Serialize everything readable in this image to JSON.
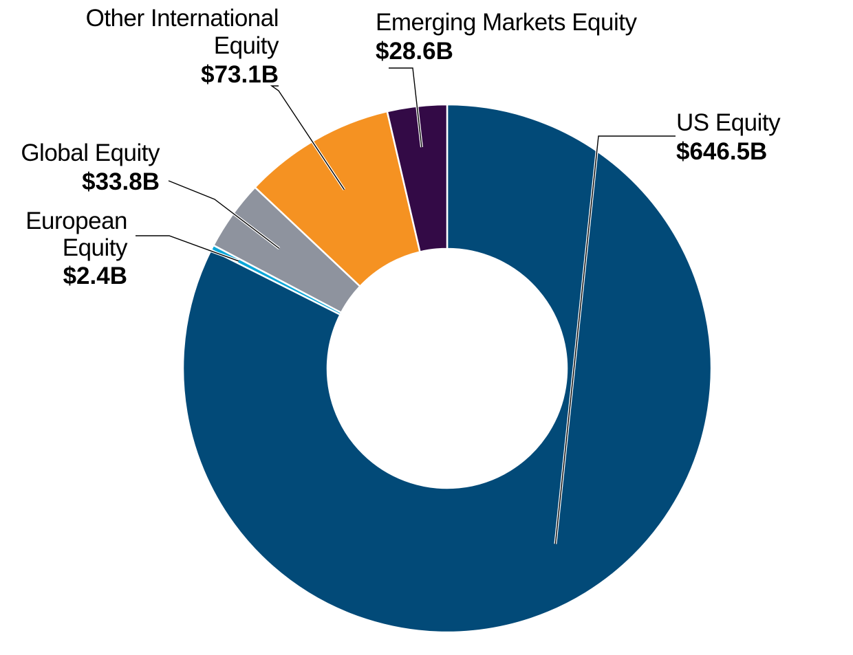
{
  "chart_data": {
    "type": "pie",
    "donut": true,
    "categories": [
      "US Equity",
      "European Equity",
      "Global Equity",
      "Other International Equity",
      "Emerging Markets Equity"
    ],
    "values": [
      646.5,
      2.4,
      33.8,
      73.1,
      28.6
    ],
    "value_labels": [
      "$646.5B",
      "$2.4B",
      "$33.8B",
      "$73.1B",
      "$28.6B"
    ],
    "colors": [
      "#024a78",
      "#0aa6d8",
      "#8e939e",
      "#f59222",
      "#330a46"
    ],
    "labels": [
      {
        "name_lines": [
          "US Equity"
        ],
        "value": "$646.5B"
      },
      {
        "name_lines": [
          "European",
          "Equity"
        ],
        "value": "$2.4B"
      },
      {
        "name_lines": [
          "Global Equity"
        ],
        "value": "$33.8B"
      },
      {
        "name_lines": [
          "Other International",
          "Equity"
        ],
        "value": "$73.1B"
      },
      {
        "name_lines": [
          "Emerging Markets Equity"
        ],
        "value": "$28.6B"
      }
    ],
    "title": "",
    "legend": "none"
  }
}
